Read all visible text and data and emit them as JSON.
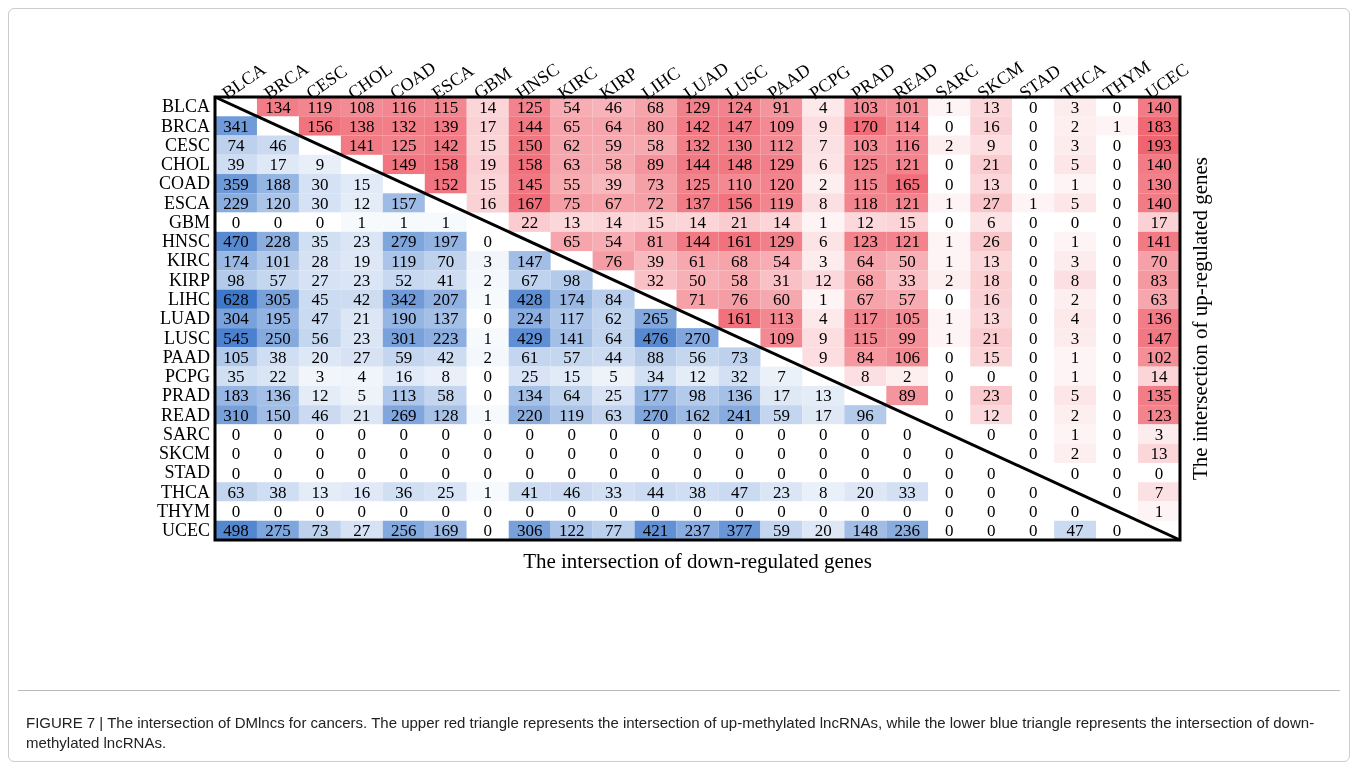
{
  "chart_data": {
    "type": "heatmap",
    "xlabel": "The intersection of down-regulated genes",
    "y2label": "The intersection of up-regulated genes",
    "categories": [
      "BLCA",
      "BRCA",
      "CESC",
      "CHOL",
      "COAD",
      "ESCA",
      "GBM",
      "HNSC",
      "KIRC",
      "KIRP",
      "LIHC",
      "LUAD",
      "LUSC",
      "PAAD",
      "PCPG",
      "PRAD",
      "READ",
      "SARC",
      "SKCM",
      "STAD",
      "THCA",
      "THYM",
      "UCEC"
    ],
    "y_categories": [
      "BLCA",
      "BRCA",
      "CESC",
      "CHOL",
      "COAD",
      "ESCA",
      "GBM",
      "HNSC",
      "KIRC",
      "KIRP",
      "LIHC",
      "LUAD",
      "LUSC",
      "PAAD",
      "PCPG",
      "PRAD",
      "READ",
      "SARC",
      "SKCM",
      "STAD",
      "THCA",
      "THYM",
      "UCEC"
    ],
    "cells": [
      [
        null,
        134,
        119,
        108,
        116,
        115,
        14,
        125,
        54,
        46,
        68,
        129,
        124,
        91,
        4,
        103,
        101,
        1,
        13,
        0,
        3,
        0,
        140
      ],
      [
        341,
        null,
        156,
        138,
        132,
        139,
        17,
        144,
        65,
        64,
        80,
        142,
        147,
        109,
        9,
        170,
        114,
        0,
        16,
        0,
        2,
        1,
        183
      ],
      [
        74,
        46,
        null,
        141,
        125,
        142,
        15,
        150,
        62,
        59,
        58,
        132,
        130,
        112,
        7,
        103,
        116,
        2,
        9,
        0,
        3,
        0,
        193
      ],
      [
        39,
        17,
        9,
        null,
        149,
        158,
        19,
        158,
        63,
        58,
        89,
        144,
        148,
        129,
        6,
        125,
        121,
        0,
        21,
        0,
        5,
        0,
        140
      ],
      [
        359,
        188,
        30,
        15,
        null,
        152,
        15,
        145,
        55,
        39,
        73,
        125,
        110,
        120,
        2,
        115,
        165,
        0,
        13,
        0,
        1,
        0,
        130
      ],
      [
        229,
        120,
        30,
        12,
        157,
        null,
        16,
        167,
        75,
        67,
        72,
        137,
        156,
        119,
        8,
        118,
        121,
        1,
        27,
        1,
        5,
        0,
        140
      ],
      [
        0,
        0,
        0,
        1,
        1,
        1,
        null,
        22,
        13,
        14,
        15,
        14,
        21,
        14,
        1,
        12,
        15,
        0,
        6,
        0,
        0,
        0,
        17
      ],
      [
        470,
        228,
        35,
        23,
        279,
        197,
        0,
        null,
        65,
        54,
        81,
        144,
        161,
        129,
        6,
        123,
        121,
        1,
        26,
        0,
        1,
        0,
        141
      ],
      [
        174,
        101,
        28,
        19,
        119,
        70,
        3,
        147,
        null,
        76,
        39,
        61,
        68,
        54,
        3,
        64,
        50,
        1,
        13,
        0,
        3,
        0,
        70
      ],
      [
        98,
        57,
        27,
        23,
        52,
        41,
        2,
        67,
        98,
        null,
        32,
        50,
        58,
        31,
        12,
        68,
        33,
        2,
        18,
        0,
        8,
        0,
        83
      ],
      [
        628,
        305,
        45,
        42,
        342,
        207,
        1,
        428,
        174,
        84,
        null,
        71,
        76,
        60,
        1,
        67,
        57,
        0,
        16,
        0,
        2,
        0,
        63
      ],
      [
        304,
        195,
        47,
        21,
        190,
        137,
        0,
        224,
        117,
        62,
        265,
        null,
        161,
        113,
        4,
        117,
        105,
        1,
        13,
        0,
        4,
        0,
        136
      ],
      [
        545,
        250,
        56,
        23,
        301,
        223,
        1,
        429,
        141,
        64,
        476,
        270,
        null,
        109,
        9,
        115,
        99,
        1,
        21,
        0,
        3,
        0,
        147
      ],
      [
        105,
        38,
        20,
        27,
        59,
        42,
        2,
        61,
        57,
        44,
        88,
        56,
        73,
        null,
        9,
        84,
        106,
        0,
        15,
        0,
        1,
        0,
        102
      ],
      [
        35,
        22,
        3,
        4,
        16,
        8,
        0,
        25,
        15,
        5,
        34,
        12,
        32,
        7,
        null,
        8,
        2,
        0,
        0,
        0,
        1,
        0,
        14
      ],
      [
        183,
        136,
        12,
        5,
        113,
        58,
        0,
        134,
        64,
        25,
        177,
        98,
        136,
        17,
        13,
        null,
        89,
        0,
        23,
        0,
        5,
        0,
        135
      ],
      [
        310,
        150,
        46,
        21,
        269,
        128,
        1,
        220,
        119,
        63,
        270,
        162,
        241,
        59,
        17,
        96,
        null,
        0,
        12,
        0,
        2,
        0,
        123
      ],
      [
        0,
        0,
        0,
        0,
        0,
        0,
        0,
        0,
        0,
        0,
        0,
        0,
        0,
        0,
        0,
        0,
        0,
        null,
        0,
        0,
        1,
        0,
        3
      ],
      [
        0,
        0,
        0,
        0,
        0,
        0,
        0,
        0,
        0,
        0,
        0,
        0,
        0,
        0,
        0,
        0,
        0,
        0,
        null,
        0,
        2,
        0,
        13
      ],
      [
        0,
        0,
        0,
        0,
        0,
        0,
        0,
        0,
        0,
        0,
        0,
        0,
        0,
        0,
        0,
        0,
        0,
        0,
        0,
        null,
        0,
        0,
        0
      ],
      [
        63,
        38,
        13,
        16,
        36,
        25,
        1,
        41,
        46,
        33,
        44,
        38,
        47,
        23,
        8,
        20,
        33,
        0,
        0,
        0,
        null,
        0,
        7
      ],
      [
        0,
        0,
        0,
        0,
        0,
        0,
        0,
        0,
        0,
        0,
        0,
        0,
        0,
        0,
        0,
        0,
        0,
        0,
        0,
        0,
        0,
        null,
        1
      ],
      [
        498,
        275,
        73,
        27,
        256,
        169,
        0,
        306,
        122,
        77,
        421,
        237,
        377,
        59,
        20,
        148,
        236,
        0,
        0,
        0,
        47,
        0,
        null
      ]
    ],
    "data_labels": true,
    "annotations": [
      "FIGURE 7 | The intersection of DMlncs for cancers. The upper red triangle represents the intersection of up-methylated lncRNAs, while the lower blue triangle represents the intersection of down-methylated lncRNAs."
    ]
  }
}
